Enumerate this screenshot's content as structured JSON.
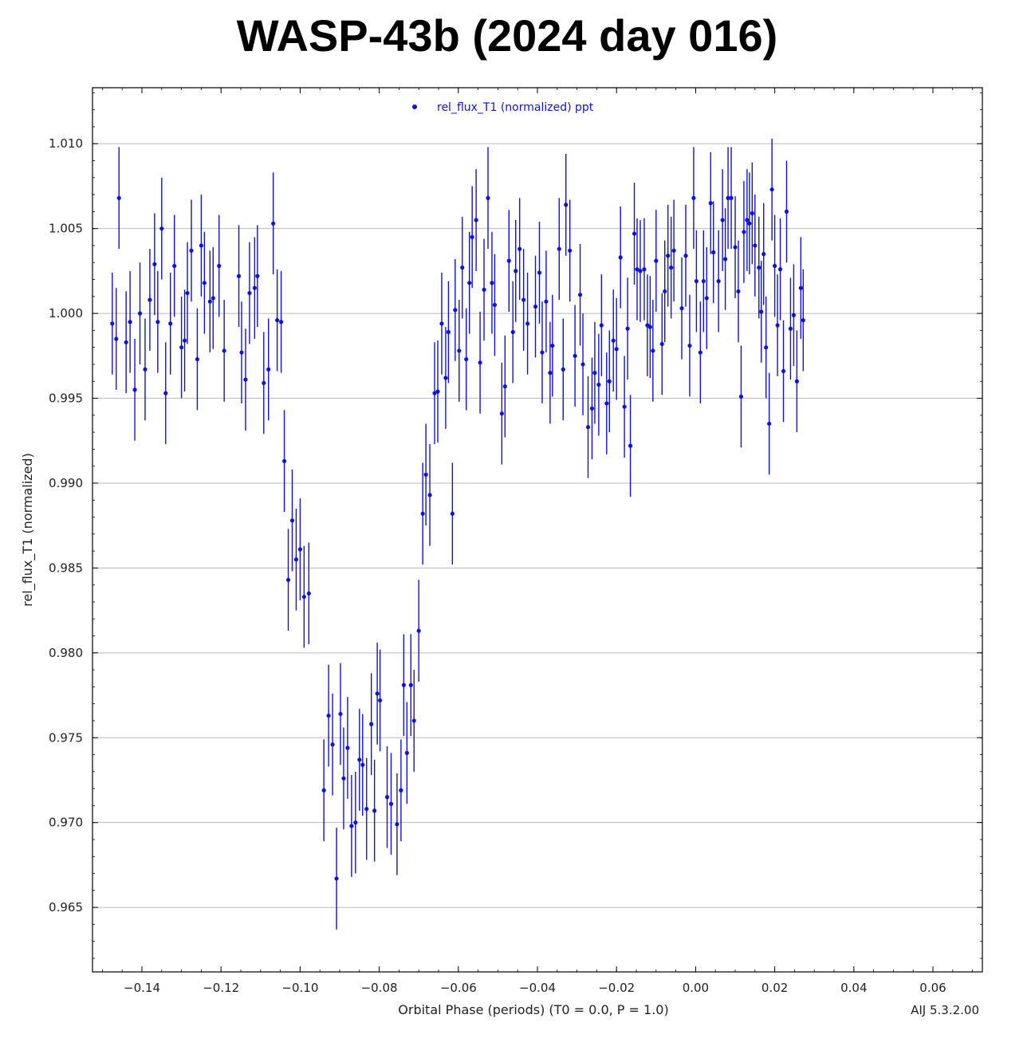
{
  "title": "WASP-43b (2024 day 016)",
  "version": "AIJ 5.3.2.00",
  "colors": {
    "series": "#1111dd",
    "grid": "#bbbbbb",
    "axis": "#000000"
  },
  "chart_data": {
    "type": "scatter",
    "title": "WASP-43b (2024 day 016)",
    "xlabel": "Orbital Phase (periods) (T0 = 0.0, P = 1.0)",
    "ylabel": "rel_flux_T1 (normalized)",
    "xlim": [
      -0.1525,
      0.0725
    ],
    "ylim": [
      0.9612,
      1.0133
    ],
    "xticks": [
      -0.14,
      -0.12,
      -0.1,
      -0.08,
      -0.06,
      -0.04,
      -0.02,
      0.0,
      0.02,
      0.04,
      0.06
    ],
    "xtick_labels": [
      "−0.14",
      "−0.12",
      "−0.10",
      "−0.08",
      "−0.06",
      "−0.04",
      "−0.02",
      "0.00",
      "0.02",
      "0.04",
      "0.06"
    ],
    "yticks": [
      0.965,
      0.97,
      0.975,
      0.98,
      0.985,
      0.99,
      0.995,
      1.0,
      1.005,
      1.01
    ],
    "ytick_labels": [
      "0.965",
      "0.970",
      "0.975",
      "0.980",
      "0.985",
      "0.990",
      "0.995",
      "1.000",
      "1.005",
      "1.010"
    ],
    "grid": "horizontal",
    "legend": {
      "label": "rel_flux_T1 (normalized) ppt",
      "position": "top-center"
    },
    "series": [
      {
        "name": "rel_flux_T1 (normalized) ppt",
        "error": 0.003,
        "points": [
          [
            -0.1475,
            0.9994
          ],
          [
            -0.1465,
            0.9985
          ],
          [
            -0.1458,
            1.0068
          ],
          [
            -0.144,
            0.9983
          ],
          [
            -0.143,
            0.9995
          ],
          [
            -0.1418,
            0.9955
          ],
          [
            -0.1405,
            1.0
          ],
          [
            -0.1392,
            0.9967
          ],
          [
            -0.138,
            1.0008
          ],
          [
            -0.1368,
            1.0029
          ],
          [
            -0.136,
            0.9995
          ],
          [
            -0.135,
            1.005
          ],
          [
            -0.134,
            0.9953
          ],
          [
            -0.1328,
            0.9994
          ],
          [
            -0.1318,
            1.0028
          ],
          [
            -0.13,
            0.998
          ],
          [
            -0.1292,
            0.9984
          ],
          [
            -0.1285,
            1.0012
          ],
          [
            -0.1275,
            1.0037
          ],
          [
            -0.126,
            0.9973
          ],
          [
            -0.125,
            1.004
          ],
          [
            -0.1242,
            1.0018
          ],
          [
            -0.1228,
            1.0007
          ],
          [
            -0.122,
            1.0009
          ],
          [
            -0.1205,
            1.0028
          ],
          [
            -0.1192,
            0.9978
          ],
          [
            -0.1155,
            1.0022
          ],
          [
            -0.1148,
            0.9977
          ],
          [
            -0.1138,
            0.9961
          ],
          [
            -0.1128,
            1.0012
          ],
          [
            -0.1115,
            1.0015
          ],
          [
            -0.1108,
            1.0022
          ],
          [
            -0.1092,
            0.9959
          ],
          [
            -0.108,
            0.9967
          ],
          [
            -0.1068,
            1.0053
          ],
          [
            -0.1058,
            0.9996
          ],
          [
            -0.1048,
            0.9995
          ],
          [
            -0.104,
            0.9913
          ],
          [
            -0.103,
            0.9843
          ],
          [
            -0.102,
            0.9878
          ],
          [
            -0.101,
            0.9855
          ],
          [
            -0.1,
            0.9861
          ],
          [
            -0.099,
            0.9833
          ],
          [
            -0.0978,
            0.9835
          ],
          [
            -0.094,
            0.9719
          ],
          [
            -0.0928,
            0.9763
          ],
          [
            -0.0918,
            0.9746
          ],
          [
            -0.0908,
            0.9667
          ],
          [
            -0.0898,
            0.9764
          ],
          [
            -0.089,
            0.9726
          ],
          [
            -0.088,
            0.9744
          ],
          [
            -0.087,
            0.9698
          ],
          [
            -0.086,
            0.97
          ],
          [
            -0.085,
            0.9737
          ],
          [
            -0.0842,
            0.9734
          ],
          [
            -0.0832,
            0.9708
          ],
          [
            -0.082,
            0.9758
          ],
          [
            -0.0812,
            0.9707
          ],
          [
            -0.0805,
            0.9776
          ],
          [
            -0.0798,
            0.9772
          ],
          [
            -0.078,
            0.9715
          ],
          [
            -0.077,
            0.9711
          ],
          [
            -0.0755,
            0.9699
          ],
          [
            -0.0745,
            0.9719
          ],
          [
            -0.0738,
            0.9781
          ],
          [
            -0.073,
            0.9741
          ],
          [
            -0.072,
            0.9781
          ],
          [
            -0.0712,
            0.976
          ],
          [
            -0.07,
            0.9813
          ],
          [
            -0.069,
            0.9882
          ],
          [
            -0.0682,
            0.9905
          ],
          [
            -0.0672,
            0.9893
          ],
          [
            -0.066,
            0.9953
          ],
          [
            -0.0652,
            0.9954
          ],
          [
            -0.0642,
            0.9994
          ],
          [
            -0.0632,
            0.9962
          ],
          [
            -0.0625,
            0.9989
          ],
          [
            -0.0615,
            0.9882
          ],
          [
            -0.0608,
            1.0002
          ],
          [
            -0.0598,
            0.9978
          ],
          [
            -0.059,
            1.0027
          ],
          [
            -0.058,
            0.9973
          ],
          [
            -0.0572,
            1.0018
          ],
          [
            -0.0565,
            1.0045
          ],
          [
            -0.0555,
            1.0055
          ],
          [
            -0.0545,
            0.9971
          ],
          [
            -0.0535,
            1.0014
          ],
          [
            -0.0525,
            1.0068
          ],
          [
            -0.0515,
            1.0018
          ],
          [
            -0.0508,
            1.0005
          ],
          [
            -0.049,
            0.9941
          ],
          [
            -0.0482,
            0.9957
          ],
          [
            -0.0472,
            1.0031
          ],
          [
            -0.0462,
            0.9989
          ],
          [
            -0.0455,
            1.0025
          ],
          [
            -0.0445,
            1.0038
          ],
          [
            -0.0435,
            1.0008
          ],
          [
            -0.0425,
            0.9994
          ],
          [
            -0.0405,
            1.0004
          ],
          [
            -0.0395,
            1.0024
          ],
          [
            -0.0388,
            0.9977
          ],
          [
            -0.0378,
            1.0007
          ],
          [
            -0.0368,
            0.9965
          ],
          [
            -0.0362,
            0.9981
          ],
          [
            -0.0345,
            1.0038
          ],
          [
            -0.0335,
            0.9967
          ],
          [
            -0.0328,
            1.0064
          ],
          [
            -0.0318,
            1.0037
          ],
          [
            -0.0305,
            0.9975
          ],
          [
            -0.0292,
            1.0011
          ],
          [
            -0.0285,
            0.997
          ],
          [
            -0.0272,
            0.9933
          ],
          [
            -0.0262,
            0.9944
          ],
          [
            -0.0255,
            0.9965
          ],
          [
            -0.0245,
            0.9958
          ],
          [
            -0.0238,
            0.9993
          ],
          [
            -0.0225,
            0.9947
          ],
          [
            -0.0218,
            0.996
          ],
          [
            -0.0208,
            0.9984
          ],
          [
            -0.02,
            0.9979
          ],
          [
            -0.019,
            1.0033
          ],
          [
            -0.018,
            0.9945
          ],
          [
            -0.0172,
            0.9991
          ],
          [
            -0.0165,
            0.9922
          ],
          [
            -0.0155,
            1.0047
          ],
          [
            -0.0148,
            1.0026
          ],
          [
            -0.014,
            1.0025
          ],
          [
            -0.013,
            1.0026
          ],
          [
            -0.0122,
            0.9993
          ],
          [
            -0.0115,
            0.9992
          ],
          [
            -0.0108,
            0.9978
          ],
          [
            -0.01,
            1.0031
          ],
          [
            -0.0085,
            0.9982
          ],
          [
            -0.0078,
            1.0013
          ],
          [
            -0.007,
            1.0034
          ],
          [
            -0.0062,
            1.0027
          ],
          [
            -0.0055,
            1.0037
          ],
          [
            -0.0035,
            1.0003
          ],
          [
            -0.0025,
            1.0034
          ],
          [
            -0.0015,
            0.9981
          ],
          [
            -0.0005,
            1.0068
          ],
          [
            0.0002,
            1.0019
          ],
          [
            0.0012,
            0.9977
          ],
          [
            0.002,
            1.0019
          ],
          [
            0.0028,
            1.0009
          ],
          [
            0.0038,
            1.0065
          ],
          [
            0.0045,
            1.0036
          ],
          [
            0.0058,
            1.0019
          ],
          [
            0.0068,
            1.0055
          ],
          [
            0.0075,
            1.0032
          ],
          [
            0.0082,
            1.0068
          ],
          [
            0.009,
            1.0068
          ],
          [
            0.01,
            1.0039
          ],
          [
            0.0108,
            1.0013
          ],
          [
            0.0115,
            0.9951
          ],
          [
            0.0122,
            1.0048
          ],
          [
            0.013,
            1.0055
          ],
          [
            0.0136,
            1.0053
          ],
          [
            0.0143,
            1.0059
          ],
          [
            0.015,
            1.004
          ],
          [
            0.016,
            1.0027
          ],
          [
            0.0166,
            1.0001
          ],
          [
            0.0172,
            1.0035
          ],
          [
            0.0178,
            0.998
          ],
          [
            0.0186,
            0.9935
          ],
          [
            0.0193,
            1.0073
          ],
          [
            0.02,
            1.0028
          ],
          [
            0.0207,
            0.9993
          ],
          [
            0.0214,
            1.0026
          ],
          [
            0.0222,
            0.9966
          ],
          [
            0.023,
            1.006
          ],
          [
            0.024,
            0.9991
          ],
          [
            0.0248,
            0.9999
          ],
          [
            0.0256,
            0.996
          ],
          [
            0.0266,
            1.0015
          ],
          [
            0.0272,
            0.9996
          ]
        ]
      }
    ]
  }
}
